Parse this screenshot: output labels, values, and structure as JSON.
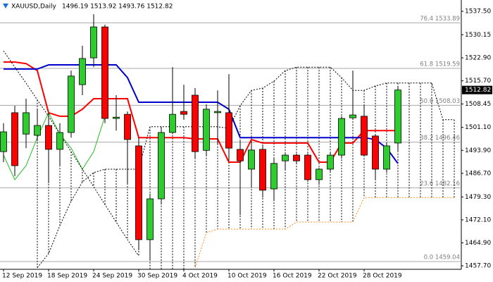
{
  "chart_data": {
    "type": "candlestick",
    "title": "XAUUSD,Daily",
    "ohlc_text": "1496.19 1513.92 1493.76 1512.82",
    "last_price": 1512.82,
    "up_color": "#2ecc2e",
    "down_color": "#ff0000",
    "categories": [
      "12 Sep 2019",
      null,
      null,
      null,
      "18 Sep 2019",
      null,
      null,
      null,
      "24 Sep 2019",
      null,
      null,
      null,
      "30 Sep 2019",
      null,
      null,
      null,
      "4 Oct 2019",
      null,
      null,
      null,
      "10 Oct 2019",
      null,
      null,
      null,
      "16 Oct 2019",
      null,
      null,
      null,
      "22 Oct 2019",
      null,
      null,
      null,
      "28 Oct 2019",
      null,
      null,
      null,
      null,
      null,
      null,
      null,
      null
    ],
    "open": [
      1493.5,
      1505.7,
      1499.0,
      1498.6,
      1501.7,
      1494.2,
      1499.5,
      1514.5,
      1522.9,
      1532.6,
      1503.9,
      1505.2,
      1495.3,
      1465.9,
      1478.7,
      1499.5,
      1506.1,
      1511.2,
      1493.9,
      1505.7,
      1505.7,
      1494.2,
      1488.0,
      1494.2,
      1481.8,
      1490.6,
      1492.4,
      1492.4,
      1484.7,
      1488.0,
      1492.4,
      1504.1,
      1504.6,
      1498.4,
      1488.0,
      1496.19,
      null,
      null,
      null,
      null,
      null
    ],
    "high": [
      1502.4,
      1507.9,
      1510.1,
      1506.8,
      1505.7,
      1502.4,
      1518.9,
      1526.7,
      1536.6,
      1533.3,
      1511.2,
      1506.1,
      1497.9,
      1480.3,
      1501.3,
      1520.0,
      1514.5,
      1513.4,
      1508.3,
      1512.7,
      1517.8,
      1496.8,
      1496.8,
      1495.7,
      1491.3,
      1492.9,
      1492.9,
      1492.9,
      1488.4,
      1493.5,
      1504.6,
      1518.9,
      1508.3,
      1499.0,
      1496.4,
      1513.92,
      null,
      null,
      null,
      null,
      null
    ],
    "low": [
      1490.2,
      1485.8,
      1494.6,
      1496.8,
      1483.6,
      1489.1,
      1497.9,
      1511.2,
      1520.0,
      1502.4,
      1500.1,
      1483.6,
      1462.6,
      1459.3,
      1476.9,
      1499.0,
      1503.5,
      1491.3,
      1492.4,
      1495.7,
      1490.6,
      1473.6,
      1482.5,
      1479.1,
      1478.0,
      1488.0,
      1489.8,
      1484.0,
      1483.1,
      1486.9,
      1491.3,
      1503.5,
      1492.0,
      1484.7,
      1486.9,
      1493.76,
      null,
      null,
      null,
      null,
      null
    ],
    "close": [
      1499.7,
      1489.1,
      1505.7,
      1501.7,
      1494.2,
      1499.5,
      1517.2,
      1522.7,
      1532.6,
      1503.9,
      1504.3,
      1497.3,
      1465.9,
      1478.7,
      1499.5,
      1505.2,
      1505.2,
      1493.5,
      1506.8,
      1506.1,
      1494.6,
      1490.6,
      1494.0,
      1481.4,
      1489.8,
      1492.4,
      1490.6,
      1484.7,
      1488.0,
      1492.4,
      1503.9,
      1505.0,
      1492.4,
      1488.0,
      1495.3,
      1512.82,
      null,
      null,
      null,
      null,
      null
    ],
    "series": [
      {
        "color": "#ff0000",
        "style": "solid",
        "values": [
          1521.6,
          1521.6,
          1521.1,
          1518.9,
          1505.7,
          1504.6,
          1504.6,
          1506.8,
          1510.1,
          1510.1,
          1510.1,
          1510.1,
          1497.9,
          1497.9,
          1497.9,
          1497.9,
          1497.9,
          1497.5,
          1497.5,
          1497.5,
          1490.2,
          1490.2,
          1497.3,
          1496.2,
          1496.2,
          1496.2,
          1496.2,
          1496.2,
          1490.2,
          1490.2,
          1496.2,
          1496.2,
          1500.1,
          1500.1,
          1500.1,
          1500.1,
          null,
          null,
          null,
          null,
          null
        ]
      },
      {
        "color": "#0000cc",
        "style": "solid",
        "values": [
          1519.4,
          1519.4,
          1519.4,
          1519.4,
          1520.7,
          1520.7,
          1520.7,
          1520.7,
          1520.7,
          1520.7,
          1520.7,
          1516.7,
          1509.0,
          1509.0,
          1509.0,
          1509.0,
          1509.0,
          1509.0,
          1509.0,
          1509.0,
          1506.8,
          1497.9,
          1497.9,
          1497.9,
          1497.9,
          1497.9,
          1497.9,
          1497.9,
          1497.9,
          1497.9,
          1497.9,
          1497.9,
          1497.9,
          1497.3,
          1494.6,
          1489.8,
          null,
          null,
          null,
          null,
          null
        ]
      },
      {
        "color": "#22bb22",
        "style": "thin",
        "values": [
          1492.4,
          1484.7,
          1489.1,
          1497.9,
          1505.7,
          1499.0,
          1494.6,
          1488.0,
          1493.5,
          1504.6,
          null,
          null,
          null,
          null,
          null,
          null,
          null,
          null,
          null,
          null,
          null,
          null,
          null,
          null,
          null,
          null,
          null,
          null,
          null,
          null,
          null,
          null,
          null,
          null,
          null,
          null,
          null,
          null,
          null,
          null,
          null
        ]
      },
      {
        "color": "#000000",
        "style": "dotted",
        "values": [
          null,
          null,
          null,
          1457.1,
          1461.5,
          1470.3,
          1478.0,
          1484.0,
          1486.9,
          1488.0,
          1488.0,
          1488.0,
          1488.0,
          1501.3,
          1501.3,
          1501.3,
          1501.3,
          1501.3,
          1501.3,
          1501.3,
          1500.8,
          1507.9,
          1512.7,
          1513.4,
          1515.6,
          1518.9,
          1520.0,
          1520.0,
          1520.0,
          1520.0,
          1516.7,
          1512.7,
          1512.7,
          1514.1,
          1515.0,
          1515.0,
          1515.0,
          1515.0,
          1515.0,
          1503.5,
          1503.5
        ]
      },
      {
        "color": "#ff8c1a",
        "style": "dotted",
        "values": [
          null,
          null,
          null,
          null,
          null,
          null,
          null,
          null,
          null,
          null,
          null,
          null,
          null,
          null,
          null,
          null,
          null,
          1457.1,
          1468.1,
          1469.2,
          1469.2,
          1469.2,
          1469.2,
          1469.2,
          1469.2,
          1469.2,
          1471.4,
          1471.4,
          1471.4,
          1471.4,
          1471.4,
          1471.4,
          1479.1,
          1479.1,
          1479.1,
          1479.1,
          1479.1,
          1479.1,
          1479.1,
          1479.1,
          1479.1
        ]
      },
      {
        "color": "#000000",
        "style": "dotted",
        "values": [
          1525.1,
          1520.0,
          1515.0,
          1509.7,
          1504.6,
          1499.0,
          1493.5,
          1488.0,
          1482.5,
          1476.9,
          1471.4,
          1465.9,
          1460.8,
          null,
          null,
          null,
          null,
          null,
          null,
          null,
          null,
          null,
          null,
          null,
          null,
          null,
          null,
          null,
          null,
          null,
          null,
          null,
          null,
          null,
          null,
          null,
          null,
          null,
          null,
          null,
          null
        ]
      }
    ],
    "fib": [
      {
        "label": "76.4 1533.89",
        "value": 1533.89
      },
      {
        "label": "61.8 1519.59",
        "value": 1519.59
      },
      {
        "label": "50.0 1508.03",
        "value": 1508.03
      },
      {
        "label": "38.2 1496.46",
        "value": 1496.46
      },
      {
        "label": "23.6 1482.16",
        "value": 1482.16
      },
      {
        "label": "0.0 1459.04",
        "value": 1459.04
      }
    ],
    "ylim": [
      1456.6,
      1540.6
    ],
    "yticks": [
      {
        "value": 1537.5,
        "label": "1537.50"
      },
      1530.15,
      {
        "value": 1522.9,
        "label": "1522.90"
      },
      {
        "value": 1515.7,
        "label": "1515.70"
      },
      1508.45,
      {
        "value": 1501.1,
        "label": "1501.10"
      },
      {
        "value": 1493.9,
        "label": "1493.90"
      },
      {
        "value": 1486.7,
        "label": "1486.70"
      },
      {
        "value": 1479.3,
        "label": "1479.30"
      },
      {
        "value": 1472.1,
        "label": "1472.10"
      },
      {
        "value": 1464.9,
        "label": "1464.90"
      },
      {
        "value": 1457.7,
        "label": "1457.70"
      }
    ]
  }
}
